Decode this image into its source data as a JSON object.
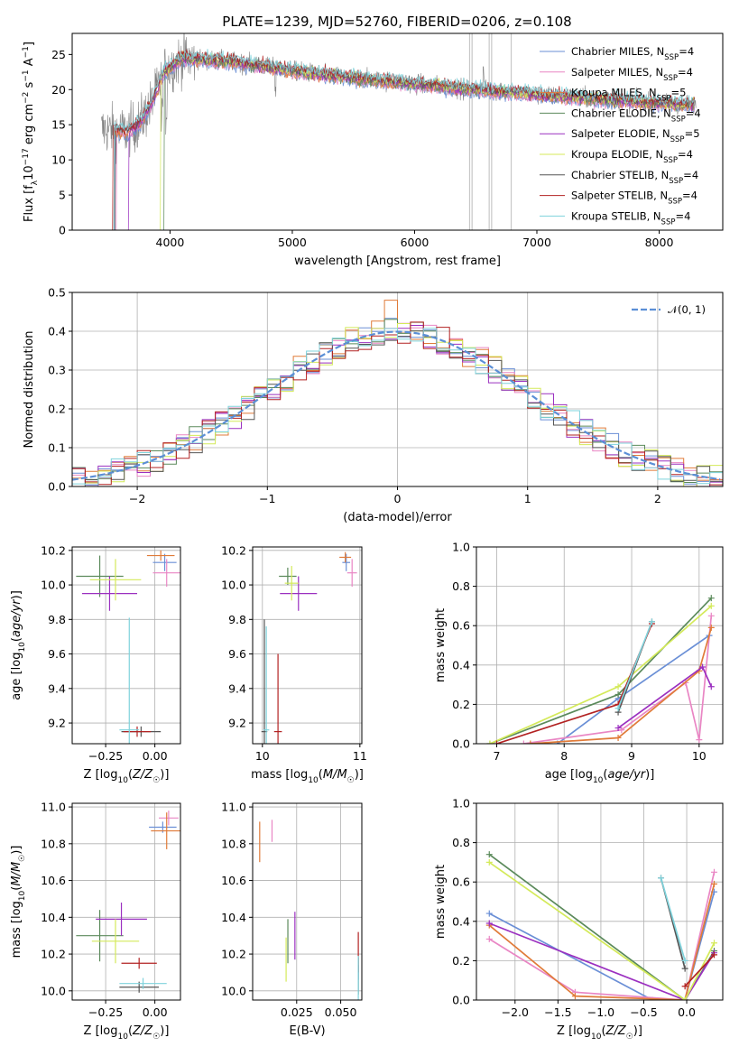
{
  "figure": {
    "title": "PLATE=1239, MJD=52760, FIBERID=0206, z=0.108"
  },
  "models": [
    {
      "name": "Chabrier MILES",
      "nssp": "4",
      "color": "#6a8fd6"
    },
    {
      "name": "Salpeter MILES",
      "nssp": "4",
      "color": "#e986c4"
    },
    {
      "name": "Kroupa MILES",
      "nssp": "5",
      "color": "#e07b39"
    },
    {
      "name": "Chabrier ELODIE",
      "nssp": "4",
      "color": "#5b8a5b"
    },
    {
      "name": "Salpeter ELODIE",
      "nssp": "5",
      "color": "#9b30c0"
    },
    {
      "name": "Kroupa ELODIE",
      "nssp": "4",
      "color": "#d4ea5a"
    },
    {
      "name": "Chabrier STELIB",
      "nssp": "4",
      "color": "#555555"
    },
    {
      "name": "Salpeter STELIB",
      "nssp": "4",
      "color": "#b22222"
    },
    {
      "name": "Kroupa STELIB",
      "nssp": "4",
      "color": "#7fd3dc"
    }
  ],
  "chart_data": [
    {
      "id": "spectrum",
      "type": "line",
      "xlabel": "wavelength [Angstrom, rest frame]",
      "ylabel": "Flux [f_λ 10^-17 erg cm^-2 s^-1 A^-1]",
      "xlim": [
        3200,
        8520
      ],
      "ylim": [
        0,
        28
      ],
      "xticks": [
        4000,
        5000,
        6000,
        7000,
        8000
      ],
      "yticks": [
        0,
        5,
        10,
        15,
        20,
        25
      ],
      "observed_color": "#808080",
      "continuum_knots": {
        "x": [
          3500,
          3650,
          3750,
          3850,
          3950,
          4100,
          4300,
          4500,
          4800,
          5000,
          5300,
          5600,
          5900,
          6200,
          6500,
          6800,
          7100,
          7400,
          7700,
          8000,
          8300
        ],
        "y": [
          14.3,
          14.0,
          15.2,
          18.0,
          22.5,
          24.5,
          24.2,
          24.0,
          23.2,
          22.7,
          22.0,
          21.5,
          21.0,
          20.5,
          20.0,
          19.6,
          19.1,
          18.8,
          18.4,
          18.1,
          17.8
        ]
      },
      "model_start_wavelength": [
        3545,
        3560,
        3540,
        3950,
        3660,
        3920,
        3550,
        3530,
        3540
      ]
    },
    {
      "id": "residuals",
      "type": "histogram",
      "xlabel": "(data-model)/error",
      "ylabel": "Normed distribution",
      "xlim": [
        -2.5,
        2.5
      ],
      "ylim": [
        0,
        0.5
      ],
      "xticks": [
        -2,
        -1,
        0,
        1,
        2
      ],
      "yticks": [
        0.0,
        0.1,
        0.2,
        0.3,
        0.4,
        0.5
      ],
      "legend": "𝒩(0, 1)",
      "gaussian_color": "#5b8fd6",
      "bin_edges_start": -2.5,
      "bin_width": 0.1,
      "peak_bin_max": 0.48
    },
    {
      "id": "age-vs-Z",
      "type": "errorbar",
      "xlabel": "Z [log10(Z/Z⊙)]",
      "ylabel": "age [log10(age/yr)]",
      "xlim": [
        -0.42,
        0.13
      ],
      "ylim": [
        9.08,
        10.22
      ],
      "xticks": [
        -0.25,
        0.0
      ],
      "yticks": [
        9.2,
        9.4,
        9.6,
        9.8,
        10.0,
        10.2
      ],
      "points": [
        {
          "model": 0,
          "x": 0.05,
          "y": 10.13,
          "xerr": 0.06,
          "yerr": 0.05
        },
        {
          "model": 1,
          "x": 0.06,
          "y": 10.07,
          "xerr": 0.07,
          "yerr": 0.08
        },
        {
          "model": 2,
          "x": 0.03,
          "y": 10.17,
          "xerr": 0.07,
          "yerr": 0.03
        },
        {
          "model": 3,
          "x": -0.28,
          "y": 10.05,
          "xerr": 0.12,
          "yerr": 0.12
        },
        {
          "model": 4,
          "x": -0.23,
          "y": 9.95,
          "xerr": 0.14,
          "yerr": 0.1
        },
        {
          "model": 5,
          "x": -0.2,
          "y": 10.03,
          "xerr": 0.13,
          "yerr": 0.12
        },
        {
          "model": 6,
          "x": -0.07,
          "y": 9.15,
          "xerr": 0.1,
          "yerr": 0.03
        },
        {
          "model": 7,
          "x": -0.09,
          "y": 9.15,
          "xerr": 0.07,
          "yerr": 0.03
        },
        {
          "model": 8,
          "x": -0.13,
          "y": 9.16,
          "xerr": 0.05,
          "yerr": 0.65
        }
      ]
    },
    {
      "id": "age-vs-mass",
      "type": "errorbar",
      "xlabel": "mass [log10(M/M⊙)]",
      "ylabel": "",
      "xlim": [
        9.9,
        11.02
      ],
      "ylim": [
        9.08,
        10.22
      ],
      "xticks": [
        10,
        11
      ],
      "yticks": [
        9.2,
        9.4,
        9.6,
        9.8,
        10.0,
        10.2
      ],
      "points": [
        {
          "model": 0,
          "x": 10.86,
          "y": 10.13,
          "xerr": 0.04,
          "yerr": 0.05
        },
        {
          "model": 1,
          "x": 10.92,
          "y": 10.07,
          "xerr": 0.05,
          "yerr": 0.08
        },
        {
          "model": 2,
          "x": 10.85,
          "y": 10.16,
          "xerr": 0.06,
          "yerr": 0.03
        },
        {
          "model": 3,
          "x": 10.26,
          "y": 10.05,
          "xerr": 0.09,
          "yerr": 0.05
        },
        {
          "model": 4,
          "x": 10.37,
          "y": 9.95,
          "xerr": 0.19,
          "yerr": 0.1
        },
        {
          "model": 5,
          "x": 10.3,
          "y": 10.01,
          "xerr": 0.07,
          "yerr": 0.1
        },
        {
          "model": 6,
          "x": 10.02,
          "y": 9.15,
          "xerr": 0.03,
          "yerr": 0.65
        },
        {
          "model": 7,
          "x": 10.16,
          "y": 9.15,
          "xerr": 0.04,
          "yerr": 0.45
        },
        {
          "model": 8,
          "x": 10.04,
          "y": 9.16,
          "xerr": 0.03,
          "yerr": 0.6
        }
      ]
    },
    {
      "id": "weight-vs-age",
      "type": "line",
      "xlabel": "age [log10(age/yr)]",
      "ylabel": "mass weight",
      "xlim": [
        6.7,
        10.35
      ],
      "ylim": [
        0,
        1.0
      ],
      "xticks": [
        7,
        8,
        9,
        10
      ],
      "yticks": [
        0.0,
        0.2,
        0.4,
        0.6,
        0.8,
        1.0
      ],
      "series": [
        {
          "model": 0,
          "x": [
            7.9,
            8.8,
            10.15
          ],
          "y": [
            0.0,
            0.23,
            0.55
          ]
        },
        {
          "model": 1,
          "x": [
            7.4,
            8.85,
            9.8,
            10.0,
            10.18
          ],
          "y": [
            0.0,
            0.07,
            0.31,
            0.02,
            0.65
          ]
        },
        {
          "model": 2,
          "x": [
            7.5,
            8.8,
            10.0,
            10.18
          ],
          "y": [
            0.0,
            0.03,
            0.37,
            0.59
          ]
        },
        {
          "model": 3,
          "x": [
            6.9,
            8.8,
            10.18
          ],
          "y": [
            0.0,
            0.25,
            0.74
          ]
        },
        {
          "model": 4,
          "x": [
            8.8,
            10.05,
            10.18
          ],
          "y": [
            0.08,
            0.39,
            0.29
          ]
        },
        {
          "model": 5,
          "x": [
            6.9,
            8.8,
            10.18
          ],
          "y": [
            0.0,
            0.29,
            0.7
          ]
        },
        {
          "model": 6,
          "x": [
            8.8,
            9.3
          ],
          "y": [
            0.16,
            0.62
          ]
        },
        {
          "model": 7,
          "x": [
            7.0,
            8.8,
            9.3
          ],
          "y": [
            0.0,
            0.2,
            0.61
          ]
        },
        {
          "model": 8,
          "x": [
            8.8,
            9.3
          ],
          "y": [
            0.18,
            0.62
          ]
        }
      ]
    },
    {
      "id": "mass-vs-Z",
      "type": "errorbar",
      "xlabel": "Z [log10(Z/Z⊙)]",
      "ylabel": "mass [log10(M/M⊙)]",
      "xlim": [
        -0.42,
        0.13
      ],
      "ylim": [
        9.95,
        11.02
      ],
      "xticks": [
        -0.25,
        0.0
      ],
      "yticks": [
        10.0,
        10.2,
        10.4,
        10.6,
        10.8,
        11.0
      ],
      "points": [
        {
          "model": 0,
          "x": 0.04,
          "y": 10.89,
          "xerr": 0.07,
          "yerr": 0.03
        },
        {
          "model": 1,
          "x": 0.07,
          "y": 10.94,
          "xerr": 0.05,
          "yerr": 0.04
        },
        {
          "model": 2,
          "x": 0.06,
          "y": 10.87,
          "xerr": 0.08,
          "yerr": 0.1
        },
        {
          "model": 3,
          "x": -0.28,
          "y": 10.3,
          "xerr": 0.12,
          "yerr": 0.14
        },
        {
          "model": 4,
          "x": -0.17,
          "y": 10.39,
          "xerr": 0.13,
          "yerr": 0.09
        },
        {
          "model": 5,
          "x": -0.2,
          "y": 10.27,
          "xerr": 0.12,
          "yerr": 0.12
        },
        {
          "model": 6,
          "x": -0.08,
          "y": 10.02,
          "xerr": 0.1,
          "yerr": 0.03
        },
        {
          "model": 7,
          "x": -0.08,
          "y": 10.15,
          "xerr": 0.09,
          "yerr": 0.03
        },
        {
          "model": 8,
          "x": -0.06,
          "y": 10.04,
          "xerr": 0.12,
          "yerr": 0.03
        }
      ]
    },
    {
      "id": "mass-vs-EBV",
      "type": "errorbar",
      "xlabel": "E(B-V)",
      "ylabel": "",
      "xlim": [
        0.0,
        0.062
      ],
      "ylim": [
        9.95,
        11.02
      ],
      "xticks": [
        0.025,
        0.05
      ],
      "yticks": [
        10.0,
        10.2,
        10.4,
        10.6,
        10.8,
        11.0
      ],
      "points": [
        {
          "model": 0,
          "x": 0.06,
          "y": 10.1,
          "xerr": 0.0,
          "yerr": 0.04
        },
        {
          "model": 1,
          "x": 0.011,
          "y": 10.87,
          "xerr": 0.0,
          "yerr": 0.06
        },
        {
          "model": 2,
          "x": 0.004,
          "y": 10.81,
          "xerr": 0.0,
          "yerr": 0.11
        },
        {
          "model": 3,
          "x": 0.02,
          "y": 10.27,
          "xerr": 0.0,
          "yerr": 0.12
        },
        {
          "model": 4,
          "x": 0.024,
          "y": 10.3,
          "xerr": 0.0,
          "yerr": 0.13
        },
        {
          "model": 5,
          "x": 0.019,
          "y": 10.17,
          "xerr": 0.0,
          "yerr": 0.12
        },
        {
          "model": 6,
          "x": 0.06,
          "y": 10.08,
          "xerr": 0.0,
          "yerr": 0.1
        },
        {
          "model": 7,
          "x": 0.06,
          "y": 10.21,
          "xerr": 0.0,
          "yerr": 0.11
        },
        {
          "model": 8,
          "x": 0.06,
          "y": 10.06,
          "xerr": 0.0,
          "yerr": 0.13
        }
      ]
    },
    {
      "id": "weight-vs-Z",
      "type": "line",
      "xlabel": "Z [log10(Z/Z⊙)]",
      "ylabel": "mass weight",
      "xlim": [
        -2.45,
        0.42
      ],
      "ylim": [
        0,
        1.0
      ],
      "xticks": [
        -2.0,
        -1.5,
        -1.0,
        -0.5,
        0.0
      ],
      "yticks": [
        0.0,
        0.2,
        0.4,
        0.6,
        0.8,
        1.0
      ],
      "series": [
        {
          "model": 0,
          "x": [
            -2.3,
            -0.4,
            -0.02,
            0.32
          ],
          "y": [
            0.44,
            0.0,
            0.0,
            0.55
          ]
        },
        {
          "model": 1,
          "x": [
            -2.3,
            -1.3,
            -0.02,
            0.32
          ],
          "y": [
            0.31,
            0.04,
            0.0,
            0.65
          ]
        },
        {
          "model": 2,
          "x": [
            -2.3,
            -1.3,
            -0.02,
            0.32
          ],
          "y": [
            0.38,
            0.02,
            0.0,
            0.59
          ]
        },
        {
          "model": 3,
          "x": [
            -2.3,
            -0.02,
            0.32
          ],
          "y": [
            0.74,
            0.0,
            0.25
          ]
        },
        {
          "model": 4,
          "x": [
            -2.3,
            -0.02,
            0.32
          ],
          "y": [
            0.39,
            0.0,
            0.24
          ]
        },
        {
          "model": 5,
          "x": [
            -2.3,
            -0.02,
            0.32
          ],
          "y": [
            0.7,
            0.0,
            0.29
          ]
        },
        {
          "model": 6,
          "x": [
            -0.3,
            -0.02
          ],
          "y": [
            0.62,
            0.16
          ]
        },
        {
          "model": 7,
          "x": [
            -0.02,
            0.32
          ],
          "y": [
            0.07,
            0.23
          ]
        },
        {
          "model": 8,
          "x": [
            -0.3,
            -0.02
          ],
          "y": [
            0.62,
            0.2
          ]
        }
      ]
    }
  ]
}
